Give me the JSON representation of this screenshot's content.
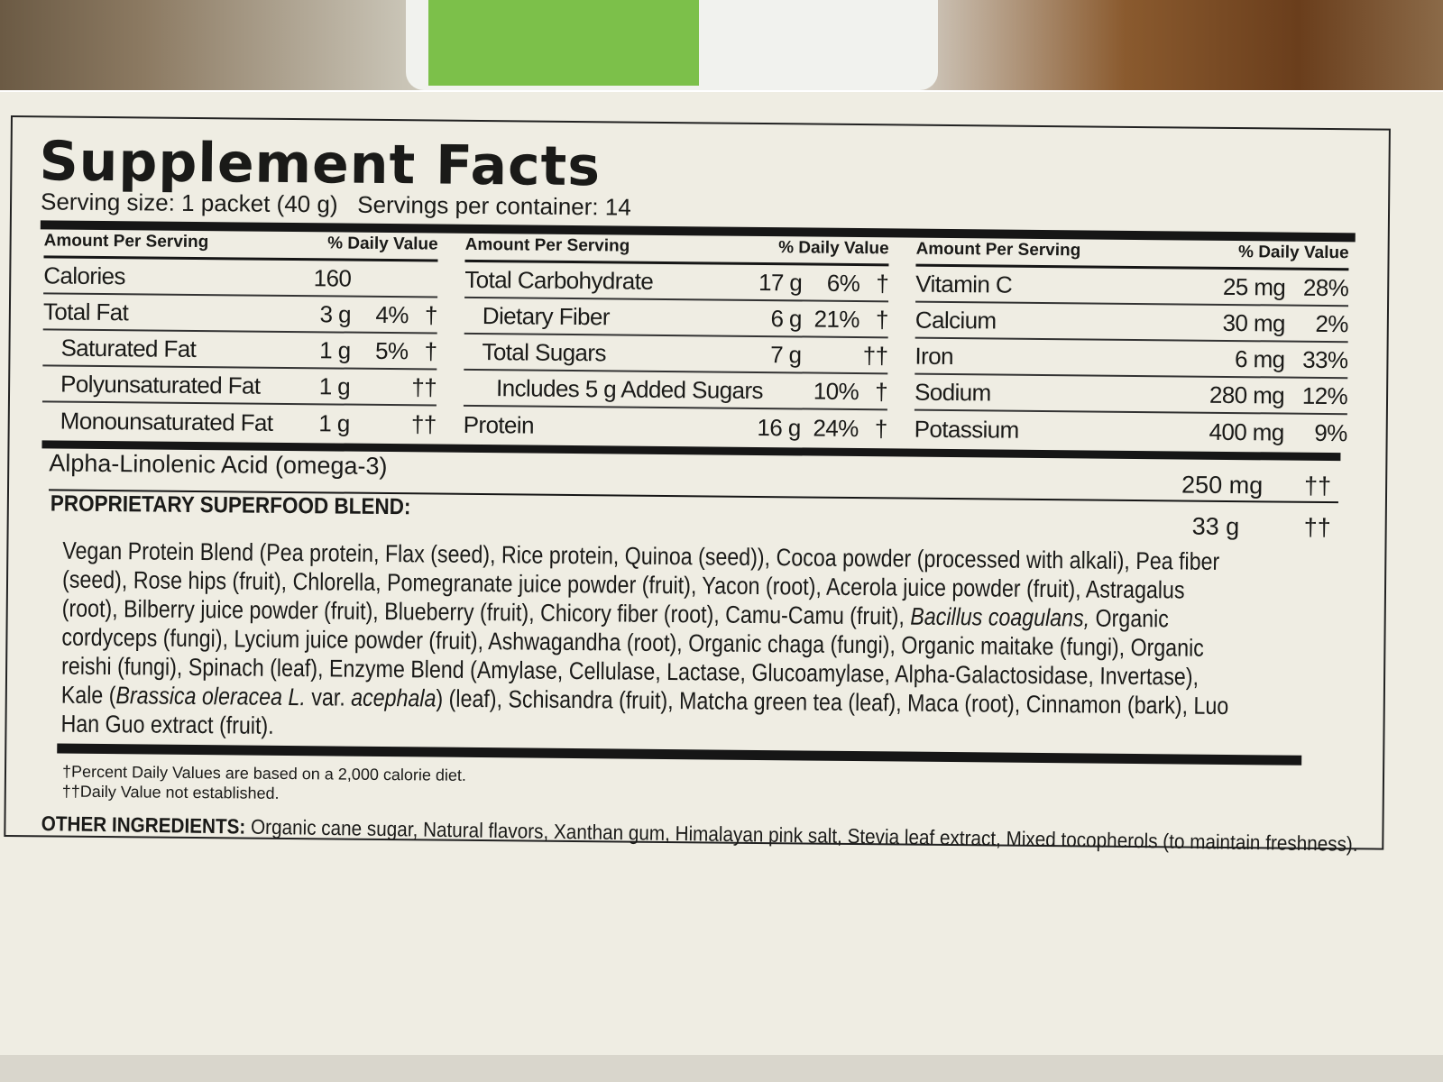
{
  "title": "Supplement Facts",
  "serving": {
    "size": "Serving size: 1 packet (40 g)",
    "per_container": "Servings per container: 14"
  },
  "headers": {
    "amount": "Amount Per Serving",
    "dv": "% Daily Value"
  },
  "col1": [
    {
      "name": "Calories",
      "amount": "160",
      "dv": "",
      "sym": ""
    },
    {
      "name": "Total Fat",
      "amount": "3 g",
      "dv": "4%",
      "sym": "†"
    },
    {
      "name": "Saturated Fat",
      "amount": "1 g",
      "dv": "5%",
      "sym": "†"
    },
    {
      "name": "Polyunsaturated Fat",
      "amount": "1 g",
      "dv": "",
      "sym": "††"
    },
    {
      "name": "Monounsaturated Fat",
      "amount": "1 g",
      "dv": "",
      "sym": "††"
    }
  ],
  "col2": [
    {
      "name": "Total Carbohydrate",
      "amount": "17 g",
      "dv": "6%",
      "sym": "†"
    },
    {
      "name": "Dietary Fiber",
      "amount": "6 g",
      "dv": "21%",
      "sym": "†"
    },
    {
      "name": "Total Sugars",
      "amount": "7 g",
      "dv": "",
      "sym": "††"
    },
    {
      "name": "Includes 5 g Added Sugars",
      "amount": "",
      "dv": "10%",
      "sym": "†"
    },
    {
      "name": "Protein",
      "amount": "16 g",
      "dv": "24%",
      "sym": "†"
    }
  ],
  "col3": [
    {
      "name": "Vitamin C",
      "amount": "25 mg",
      "dv": "28%"
    },
    {
      "name": "Calcium",
      "amount": "30 mg",
      "dv": "2%"
    },
    {
      "name": "Iron",
      "amount": "6 mg",
      "dv": "33%"
    },
    {
      "name": "Sodium",
      "amount": "280 mg",
      "dv": "12%"
    },
    {
      "name": "Potassium",
      "amount": "400 mg",
      "dv": "9%"
    }
  ],
  "ala": {
    "name": "Alpha-Linolenic Acid (omega-3)",
    "amount": "250 mg",
    "sym": "††"
  },
  "blend": {
    "name": "PROPRIETARY SUPERFOOD BLEND:",
    "amount": "33 g",
    "sym": "††",
    "lines": [
      "Vegan Protein Blend (Pea protein, Flax (seed), Rice protein, Quinoa (seed)), Cocoa powder (processed with alkali), Pea fiber",
      "(seed), Rose hips (fruit), Chlorella, Pomegranate juice powder (fruit), Yacon (root), Acerola juice powder (fruit), Astragalus",
      [
        "(root), Bilberry juice powder (fruit), Blueberry (fruit), Chicory fiber (root), Camu-Camu (fruit), ",
        "Bacillus coagulans,",
        " Organic"
      ],
      "cordyceps (fungi), Lycium juice powder (fruit), Ashwagandha (root), Organic chaga (fungi), Organic maitake (fungi), Organic",
      "reishi (fungi), Spinach (leaf), Enzyme Blend (Amylase, Cellulase, Lactase, Glucoamylase, Alpha-Galactosidase, Invertase),",
      [
        "Kale (",
        "Brassica oleracea L.",
        " var. ",
        "acephala",
        ") (leaf), Schisandra (fruit), Matcha green tea (leaf), Maca (root), Cinnamon (bark), Luo"
      ],
      "Han Guo extract (fruit)."
    ]
  },
  "footnotes": [
    "†Percent Daily Values are based on a 2,000 calorie diet.",
    "††Daily Value not established."
  ],
  "other": {
    "label": "OTHER INGREDIENTS:",
    "text": " Organic cane sugar, Natural flavors, Xanthan gum, Himalayan pink salt, Stevia leaf extract, Mixed tocopherols (to maintain freshness)."
  }
}
